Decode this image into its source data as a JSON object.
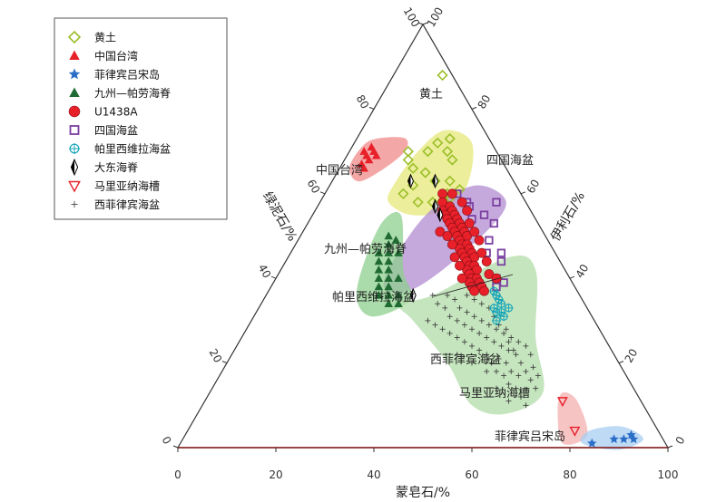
{
  "chart_data": {
    "type": "scatter",
    "subtype": "ternary",
    "axes": {
      "bottom": {
        "label": "蒙皂石/%",
        "ticks": [
          "0",
          "20",
          "40",
          "60",
          "80",
          "100"
        ],
        "range": [
          0,
          100
        ]
      },
      "left": {
        "label": "绿泥石/%",
        "ticks": [
          "100",
          "80",
          "60",
          "40",
          "20",
          "0"
        ],
        "range": [
          0,
          100
        ]
      },
      "right": {
        "label": "伊利石/%",
        "ticks": [
          "100",
          "80",
          "60",
          "40",
          "20",
          "0"
        ],
        "range": [
          0,
          100
        ]
      }
    },
    "legend_position": "top-left",
    "legend": [
      {
        "key": "loess",
        "label": "黄土",
        "marker": "diamond-open",
        "color": "#9bbf2a"
      },
      {
        "key": "taiwan",
        "label": "中国台湾",
        "marker": "triangle",
        "color": "#e8202a"
      },
      {
        "key": "luzon",
        "label": "菲律宾吕宋岛",
        "marker": "star",
        "color": "#2a6ec8"
      },
      {
        "key": "kyushu",
        "label": "九州—帕劳海脊",
        "marker": "triangle",
        "color": "#1f6b33"
      },
      {
        "key": "u1438a",
        "label": "U1438A",
        "marker": "circle",
        "color": "#e8202a"
      },
      {
        "key": "shikoku",
        "label": "四国海盆",
        "marker": "square-open",
        "color": "#7b3fa0"
      },
      {
        "key": "parece",
        "label": "帕里西维拉海盆",
        "marker": "crosshair-circle",
        "color": "#1aa6b8"
      },
      {
        "key": "daito",
        "label": "大东海脊",
        "marker": "half-diamond",
        "color": "#000000"
      },
      {
        "key": "mariana",
        "label": "马里亚纳海槽",
        "marker": "triangle-down-open",
        "color": "#e8202a"
      },
      {
        "key": "wphil",
        "label": "西菲律宾海盆",
        "marker": "plus",
        "color": "#333333"
      }
    ],
    "field_labels": {
      "loess": "黄土",
      "taiwan": "中国台湾",
      "shikoku": "四国海盆",
      "kyushu": "九州—帕劳海脊",
      "parece": "帕里西维拉海盆",
      "wphil": "西菲律宾海盆",
      "mariana": "马里亚纳海槽",
      "luzon": "菲律宾吕宋岛"
    },
    "fields": [
      {
        "key": "loess",
        "color": "#e6e87a",
        "points": [
          [
            13,
            62
          ],
          [
            14,
            70
          ],
          [
            17,
            75
          ],
          [
            24,
            72
          ],
          [
            28,
            62
          ],
          [
            26,
            56
          ],
          [
            20,
            55
          ],
          [
            14,
            58
          ]
        ]
      },
      {
        "key": "taiwan",
        "color": "#f08a8a",
        "points": [
          [
            2,
            71
          ],
          [
            4,
            73
          ],
          [
            10,
            73
          ],
          [
            11,
            69
          ],
          [
            6,
            63
          ],
          [
            2,
            66
          ]
        ]
      },
      {
        "key": "shikoku",
        "color": "#b28cd2",
        "points": [
          [
            24,
            57
          ],
          [
            30,
            62
          ],
          [
            38,
            58
          ],
          [
            37,
            50
          ],
          [
            30,
            38
          ],
          [
            23,
            38
          ],
          [
            22,
            48
          ]
        ]
      },
      {
        "key": "kyushu",
        "color": "#8ecf8e",
        "points": [
          [
            15,
            52
          ],
          [
            18,
            55
          ],
          [
            25,
            42
          ],
          [
            30,
            35
          ],
          [
            24,
            31
          ],
          [
            18,
            37
          ]
        ]
      },
      {
        "key": "wphil",
        "color": "#b2dca8",
        "points": [
          [
            28,
            34
          ],
          [
            34,
            36
          ],
          [
            45,
            45
          ],
          [
            52,
            42
          ],
          [
            60,
            26
          ],
          [
            68,
            13
          ],
          [
            63,
            8
          ],
          [
            55,
            10
          ],
          [
            45,
            20
          ],
          [
            33,
            30
          ]
        ]
      },
      {
        "key": "mariana",
        "color": "#f4b0b0",
        "points": [
          [
            72,
            13
          ],
          [
            76,
            11
          ],
          [
            82,
            3
          ],
          [
            78,
            1
          ],
          [
            73,
            9
          ]
        ]
      },
      {
        "key": "luzon",
        "color": "#a8cdf0",
        "points": [
          [
            82,
            4
          ],
          [
            88,
            5
          ],
          [
            94,
            2
          ],
          [
            90,
            -0.5
          ],
          [
            82,
            1
          ]
        ]
      }
    ],
    "series": [
      {
        "name": "黄土",
        "key": "loess",
        "points": [
          [
            10,
            88
          ],
          [
            12,
            70
          ],
          [
            16,
            70
          ],
          [
            17,
            72
          ],
          [
            19,
            73
          ],
          [
            20,
            70
          ],
          [
            22,
            68
          ],
          [
            21,
            63
          ],
          [
            24,
            63
          ],
          [
            25,
            60
          ],
          [
            27,
            61
          ],
          [
            18,
            65
          ],
          [
            15,
            66
          ],
          [
            13,
            68
          ],
          [
            16,
            60
          ],
          [
            20,
            58
          ],
          [
            23,
            58
          ],
          [
            26,
            59
          ],
          [
            17,
            62
          ]
        ]
      },
      {
        "name": "中国台湾",
        "key": "taiwan",
        "points": [
          [
            3,
            70
          ],
          [
            4,
            71
          ],
          [
            5,
            70
          ],
          [
            4,
            69
          ],
          [
            5,
            68
          ],
          [
            6,
            69
          ],
          [
            4,
            67
          ],
          [
            5,
            66
          ]
        ]
      },
      {
        "name": "菲律宾吕宋岛",
        "key": "luzon",
        "points": [
          [
            84,
            1
          ],
          [
            88,
            2
          ],
          [
            90,
            2
          ],
          [
            91,
            3
          ],
          [
            92,
            2
          ]
        ]
      },
      {
        "name": "九州—帕劳海脊",
        "key": "kyushu",
        "points": [
          [
            18,
            50
          ],
          [
            19,
            48
          ],
          [
            18,
            46
          ],
          [
            20,
            46
          ],
          [
            19,
            44
          ],
          [
            20,
            42
          ],
          [
            21,
            44
          ],
          [
            22,
            42
          ],
          [
            21,
            40
          ],
          [
            22,
            38
          ],
          [
            23,
            40
          ],
          [
            24,
            38
          ],
          [
            23,
            36
          ],
          [
            25,
            36
          ],
          [
            26,
            34
          ],
          [
            28,
            34
          ],
          [
            25,
            40
          ],
          [
            20,
            49
          ],
          [
            22,
            46
          ],
          [
            27,
            36
          ]
        ]
      },
      {
        "name": "U1438A",
        "key": "u1438a",
        "points": [
          [
            24,
            60
          ],
          [
            26,
            60
          ],
          [
            25,
            58
          ],
          [
            27,
            57
          ],
          [
            26,
            56
          ],
          [
            28,
            56
          ],
          [
            27,
            55
          ],
          [
            29,
            55
          ],
          [
            28,
            54
          ],
          [
            30,
            54
          ],
          [
            29,
            53
          ],
          [
            31,
            53
          ],
          [
            30,
            52
          ],
          [
            32,
            52
          ],
          [
            31,
            51
          ],
          [
            33,
            51
          ],
          [
            32,
            50
          ],
          [
            34,
            50
          ],
          [
            33,
            49
          ],
          [
            34,
            48
          ],
          [
            35,
            48
          ],
          [
            34,
            47
          ],
          [
            36,
            47
          ],
          [
            35,
            46
          ],
          [
            37,
            46
          ],
          [
            36,
            45
          ],
          [
            38,
            45
          ],
          [
            37,
            44
          ],
          [
            38,
            43
          ],
          [
            39,
            43
          ],
          [
            38,
            42
          ],
          [
            40,
            42
          ],
          [
            39,
            41
          ],
          [
            40,
            40
          ],
          [
            41,
            40
          ],
          [
            40,
            39
          ],
          [
            42,
            39
          ],
          [
            41,
            38
          ],
          [
            43,
            38
          ],
          [
            42,
            37
          ],
          [
            44,
            37
          ],
          [
            29,
            58
          ],
          [
            31,
            56
          ],
          [
            33,
            53
          ],
          [
            35,
            51
          ],
          [
            37,
            49
          ],
          [
            39,
            46
          ],
          [
            41,
            44
          ],
          [
            43,
            41
          ],
          [
            45,
            40
          ],
          [
            28,
            51
          ],
          [
            30,
            50
          ],
          [
            32,
            48
          ],
          [
            34,
            45
          ],
          [
            36,
            43
          ],
          [
            38,
            40
          ]
        ]
      },
      {
        "name": "四国海盆",
        "key": "shikoku",
        "points": [
          [
            27,
            60
          ],
          [
            30,
            58
          ],
          [
            31,
            57
          ],
          [
            36,
            58
          ],
          [
            33,
            54
          ],
          [
            35,
            55
          ],
          [
            38,
            53
          ],
          [
            39,
            49
          ],
          [
            40,
            46
          ],
          [
            43,
            46
          ],
          [
            44,
            44
          ],
          [
            46,
            38
          ],
          [
            45,
            40
          ],
          [
            47,
            39
          ]
        ]
      },
      {
        "name": "帕里西维拉海盆",
        "key": "parece",
        "points": [
          [
            46,
            37
          ],
          [
            47,
            36
          ],
          [
            48,
            35
          ],
          [
            48,
            33
          ],
          [
            49,
            34
          ],
          [
            49,
            32
          ],
          [
            50,
            32
          ],
          [
            51,
            33
          ],
          [
            50,
            30
          ],
          [
            51,
            31
          ]
        ]
      },
      {
        "name": "大东海脊",
        "key": "daito",
        "points": [
          [
            16,
            63
          ],
          [
            21,
            63
          ],
          [
            24,
            57
          ],
          [
            26,
            55
          ],
          [
            30,
            36
          ]
        ]
      },
      {
        "name": "马里亚纳海槽",
        "key": "mariana",
        "points": [
          [
            73,
            11
          ],
          [
            79,
            4
          ]
        ]
      },
      {
        "name": "西菲律宾海盆",
        "key": "wphil",
        "points": [
          [
            34,
            36
          ],
          [
            36,
            34
          ],
          [
            37,
            36
          ],
          [
            38,
            33
          ],
          [
            39,
            35
          ],
          [
            40,
            31
          ],
          [
            41,
            33
          ],
          [
            42,
            30
          ],
          [
            43,
            32
          ],
          [
            44,
            29
          ],
          [
            45,
            31
          ],
          [
            46,
            28
          ],
          [
            47,
            30
          ],
          [
            48,
            27
          ],
          [
            49,
            29
          ],
          [
            50,
            26
          ],
          [
            51,
            28
          ],
          [
            52,
            25
          ],
          [
            53,
            27
          ],
          [
            54,
            24
          ],
          [
            55,
            26
          ],
          [
            56,
            23
          ],
          [
            57,
            25
          ],
          [
            58,
            22
          ],
          [
            59,
            24
          ],
          [
            60,
            20
          ],
          [
            61,
            22
          ],
          [
            62,
            18
          ],
          [
            63,
            19
          ],
          [
            64,
            16
          ],
          [
            65,
            17
          ],
          [
            66,
            14
          ],
          [
            64,
            12
          ],
          [
            62,
            14
          ],
          [
            60,
            15
          ],
          [
            58,
            17
          ],
          [
            56,
            18
          ],
          [
            54,
            20
          ],
          [
            52,
            22
          ],
          [
            50,
            23
          ],
          [
            48,
            24
          ],
          [
            46,
            25
          ],
          [
            44,
            26
          ],
          [
            42,
            27
          ],
          [
            40,
            28
          ],
          [
            38,
            29
          ],
          [
            36,
            30
          ],
          [
            53,
            21
          ],
          [
            55,
            21
          ],
          [
            57,
            20
          ],
          [
            59,
            18
          ],
          [
            61,
            17
          ],
          [
            47,
            33
          ],
          [
            49,
            31
          ],
          [
            51,
            29
          ],
          [
            53,
            28
          ],
          [
            55,
            25
          ],
          [
            57,
            23
          ],
          [
            45,
            34
          ],
          [
            43,
            35
          ],
          [
            41,
            36
          ],
          [
            46,
            22
          ],
          [
            50,
            20
          ],
          [
            54,
            18
          ],
          [
            58,
            14
          ],
          [
            62,
            11
          ],
          [
            66,
            10
          ]
        ]
      }
    ]
  }
}
